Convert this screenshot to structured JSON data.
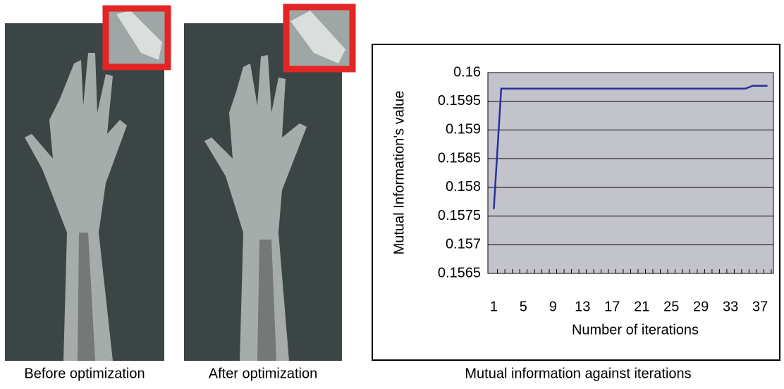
{
  "captions": [
    "Before optimization",
    "After optimization"
  ],
  "chart_data": {
    "type": "line",
    "caption": "Mutual information against iterations",
    "x_label": "Number of iterations",
    "y_label": "Mutual Information's value",
    "x": [
      1,
      2,
      3,
      4,
      5,
      6,
      7,
      8,
      9,
      10,
      11,
      12,
      13,
      14,
      15,
      16,
      17,
      18,
      19,
      20,
      21,
      22,
      23,
      24,
      25,
      26,
      27,
      28,
      29,
      30,
      31,
      32,
      33,
      34,
      35,
      36,
      37,
      38
    ],
    "xlim": [
      0.2,
      38.8
    ],
    "xticks": [
      1,
      5,
      9,
      13,
      17,
      21,
      25,
      29,
      33,
      37
    ],
    "ylim": [
      0.1565,
      0.16
    ],
    "yticks": [
      0.1565,
      0.157,
      0.1575,
      0.158,
      0.1585,
      0.159,
      0.1595,
      0.16
    ],
    "grid": true,
    "series": [
      {
        "color": "#2b2f9c",
        "values": [
          0.15762,
          0.15972,
          0.15972,
          0.15972,
          0.15972,
          0.15972,
          0.15972,
          0.15972,
          0.15972,
          0.15972,
          0.15972,
          0.15972,
          0.15972,
          0.15972,
          0.15972,
          0.15972,
          0.15972,
          0.15972,
          0.15972,
          0.15972,
          0.15972,
          0.15972,
          0.15972,
          0.15972,
          0.15972,
          0.15972,
          0.15972,
          0.15972,
          0.15972,
          0.15972,
          0.15972,
          0.15972,
          0.15972,
          0.15972,
          0.15972,
          0.15977,
          0.15977,
          0.15977
        ]
      }
    ]
  }
}
